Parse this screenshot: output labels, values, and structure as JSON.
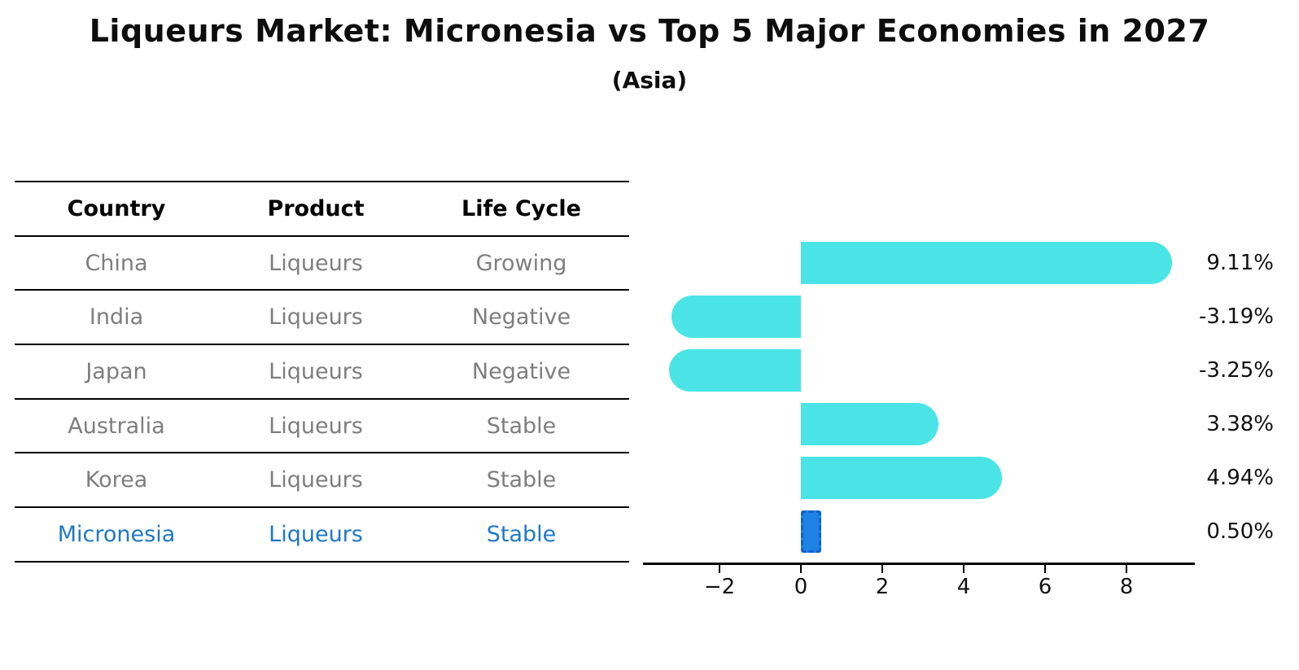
{
  "header": {
    "title": "Liqueurs Market: Micronesia vs Top 5 Major Economies in 2027",
    "subtitle": "(Asia)"
  },
  "table": {
    "headers": [
      "Country",
      "Product",
      "Life Cycle"
    ],
    "rows": [
      {
        "country": "China",
        "product": "Liqueurs",
        "life_cycle": "Growing",
        "highlight": false
      },
      {
        "country": "India",
        "product": "Liqueurs",
        "life_cycle": "Negative",
        "highlight": false
      },
      {
        "country": "Japan",
        "product": "Liqueurs",
        "life_cycle": "Negative",
        "highlight": false
      },
      {
        "country": "Australia",
        "product": "Liqueurs",
        "life_cycle": "Stable",
        "highlight": false
      },
      {
        "country": "Korea",
        "product": "Liqueurs",
        "life_cycle": "Stable",
        "highlight": false
      },
      {
        "country": "Micronesia",
        "product": "Liqueurs",
        "life_cycle": "Stable",
        "highlight": true
      }
    ]
  },
  "chart_data": {
    "type": "bar",
    "orientation": "horizontal",
    "title": "Liqueurs Market: Micronesia vs Top 5 Major Economies in 2027 (Asia)",
    "categories": [
      "China",
      "India",
      "Japan",
      "Australia",
      "Korea",
      "Micronesia"
    ],
    "values": [
      9.11,
      -3.19,
      -3.25,
      3.38,
      4.94,
      0.5
    ],
    "value_labels": [
      "9.11%",
      "-3.19%",
      "-3.25%",
      "3.38%",
      "4.94%",
      "0.50%"
    ],
    "xlabel": "",
    "ylabel": "",
    "xlim": [
      -3.88,
      9.68
    ],
    "x_ticks": [
      -2,
      0,
      2,
      4,
      6,
      8
    ],
    "x_tick_labels": [
      "−2",
      "0",
      "2",
      "4",
      "6",
      "8"
    ],
    "grid": false,
    "legend": false,
    "highlight_index": 5,
    "bar_color": "#4ae4e6",
    "highlight_bar_color": "#1e82e2",
    "highlight_border_color": "#0f5fd0"
  },
  "colors": {
    "table_text_gray": "#7e7e7e",
    "highlight_text_blue": "#1f78c8",
    "axis_black": "#000000"
  }
}
